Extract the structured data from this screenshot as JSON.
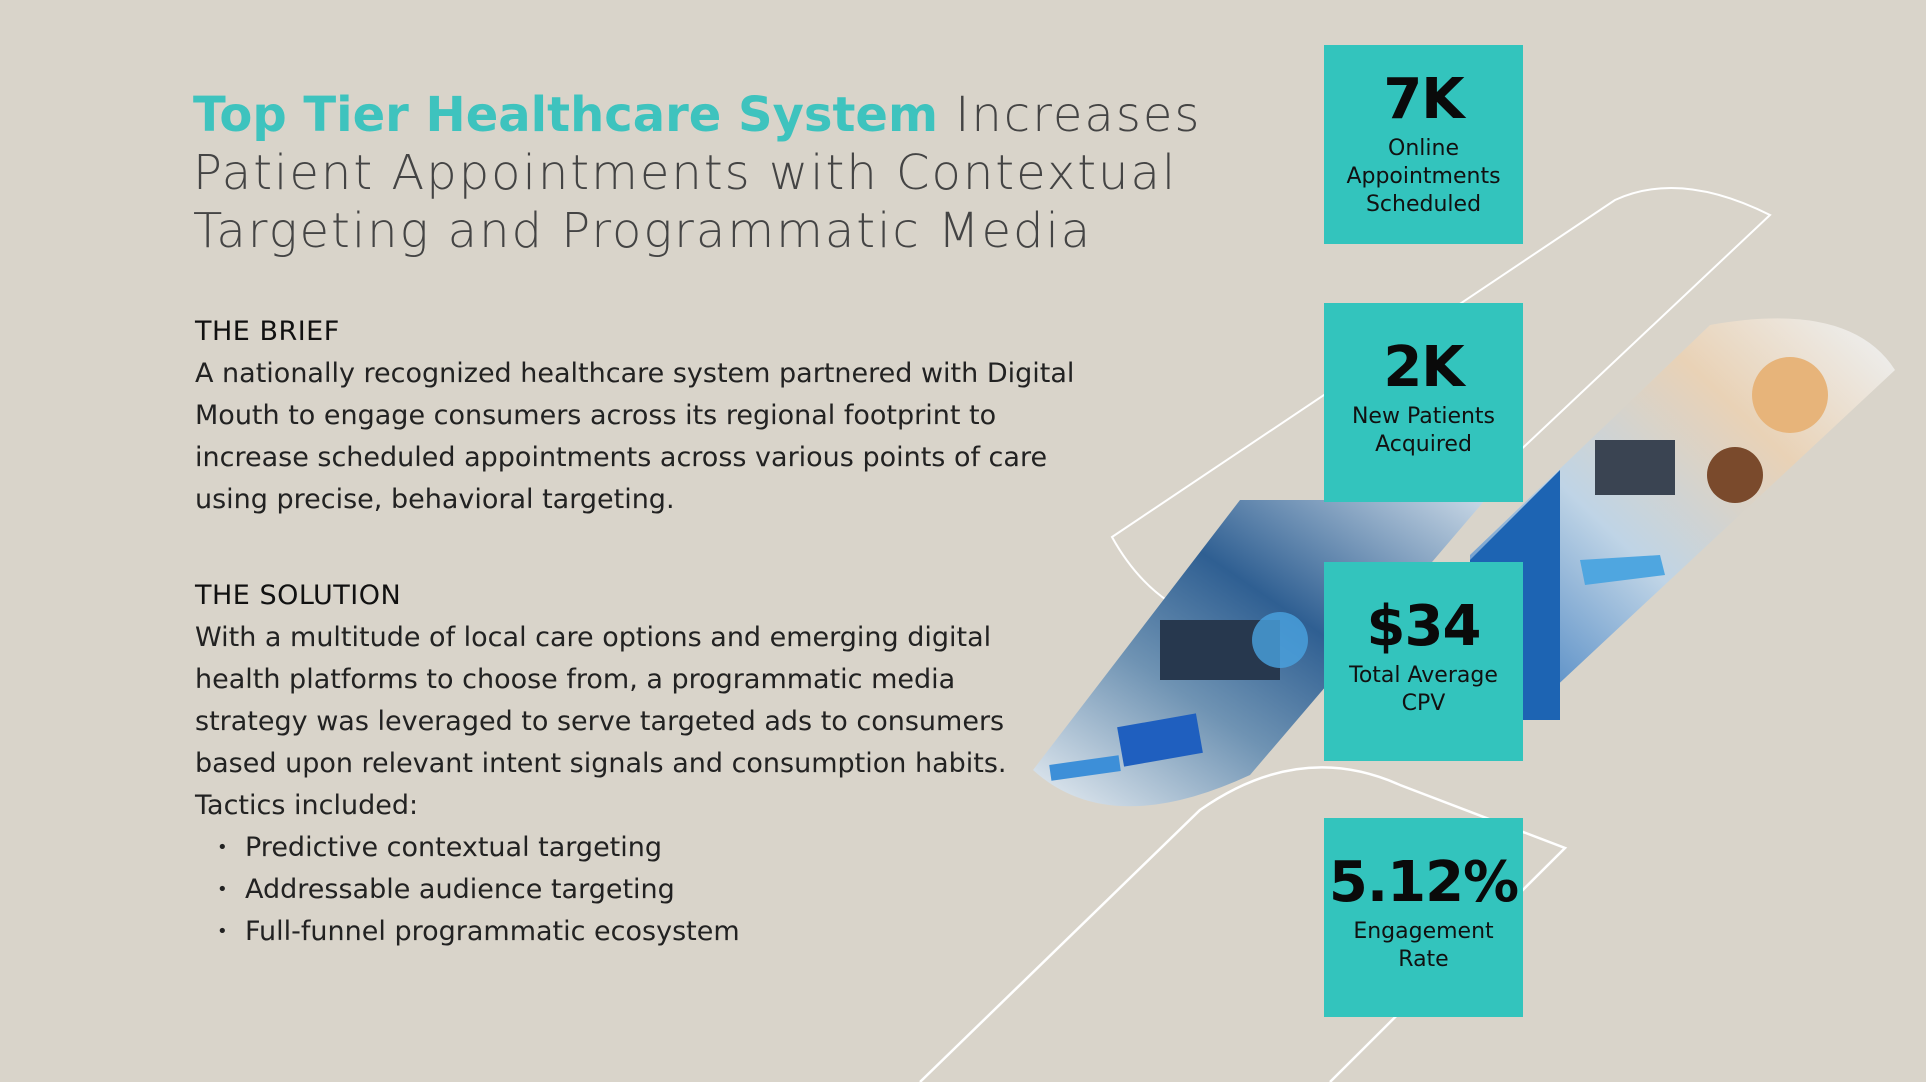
{
  "headline": {
    "accent": "Top Tier Healthcare System",
    "rest": " Increases Patient Appointments with Contextual Targeting and Programmatic Media"
  },
  "brief": {
    "heading": "THE BRIEF",
    "body": "A nationally recognized healthcare system partnered with Digital Mouth to engage consumers across its regional footprint to increase scheduled appointments across various points of care using precise, behavioral targeting."
  },
  "solution": {
    "heading": "THE SOLUTION",
    "body": "With a multitude of local care options and emerging digital health platforms to choose from, a programmatic media strategy was leveraged to serve targeted ads to consumers based upon relevant intent signals and consumption habits.",
    "tactics_intro": "Tactics included:",
    "tactics": [
      "Predictive contextual targeting",
      "Addressable audience targeting",
      "Full-funnel programmatic ecosystem"
    ]
  },
  "stats": [
    {
      "value": "7K",
      "label": "Online Appointments Scheduled"
    },
    {
      "value": "2K",
      "label": "New Patients Acquired"
    },
    {
      "value": "$34",
      "label": "Total Average CPV"
    },
    {
      "value": "5.12%",
      "label": "Engagement Rate"
    }
  ],
  "colors": {
    "background": "#d9d4ca",
    "accent": "#3ec3be",
    "stat_box": "#33c4bd"
  },
  "images": {
    "lab_photo": "laboratory-photo",
    "clinic_photo": "pediatric-clinic-photo"
  }
}
